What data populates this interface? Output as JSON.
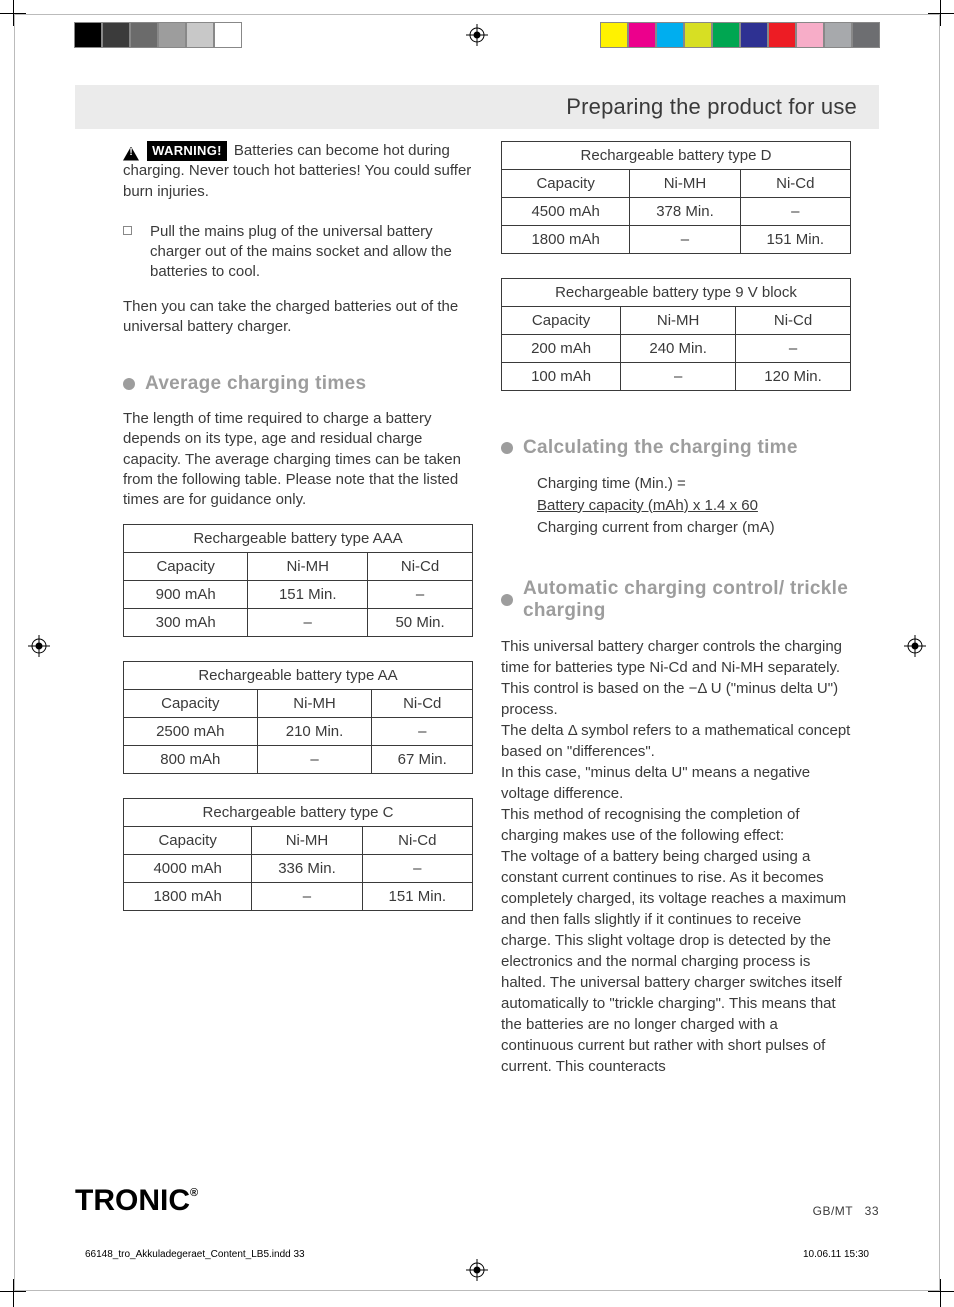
{
  "header": {
    "title": "Preparing the product for use"
  },
  "colorbar_left": [
    "#000000",
    "#3b3b3b",
    "#6b6b6b",
    "#9d9d9d",
    "#c8c8c8",
    "#ffffff"
  ],
  "colorbar_right": [
    "#fff200",
    "#ec008c",
    "#00aeef",
    "#d7df23",
    "#00a651",
    "#2e3192",
    "#ed1c24",
    "#f7adc8",
    "#a7a9ac",
    "#6d6e71"
  ],
  "warning": {
    "label": "WARNING!",
    "text": "Batteries can become hot during charging. Never touch hot batteries! You could suffer burn injuries."
  },
  "bullet1": "Pull the mains plug of the universal battery charger out of the mains socket and allow the batteries to cool.",
  "after_bullet": "Then you can take the charged batteries out of the universal battery charger.",
  "section_avg": {
    "title": "Average charging times",
    "intro": "The length of time required to charge a battery depends on its type, age and residual charge capacity. The average charging times can be taken from the following table. Please note that the listed times are for guidance only."
  },
  "tables": [
    {
      "title": "Rechargeable battery type AAA",
      "columns": [
        "Capacity",
        "Ni-MH",
        "Ni-Cd"
      ],
      "rows": [
        [
          "900 mAh",
          "151 Min.",
          "–"
        ],
        [
          "300 mAh",
          "–",
          "50 Min."
        ]
      ]
    },
    {
      "title": "Rechargeable battery type AA",
      "columns": [
        "Capacity",
        "Ni-MH",
        "Ni-Cd"
      ],
      "rows": [
        [
          "2500 mAh",
          "210 Min.",
          "–"
        ],
        [
          "800 mAh",
          "–",
          "67 Min."
        ]
      ]
    },
    {
      "title": "Rechargeable battery type C",
      "columns": [
        "Capacity",
        "Ni-MH",
        "Ni-Cd"
      ],
      "rows": [
        [
          "4000 mAh",
          "336 Min.",
          "–"
        ],
        [
          "1800 mAh",
          "–",
          "151 Min."
        ]
      ]
    },
    {
      "title": "Rechargeable battery type D",
      "columns": [
        "Capacity",
        "Ni-MH",
        "Ni-Cd"
      ],
      "rows": [
        [
          "4500 mAh",
          "378 Min.",
          "–"
        ],
        [
          "1800 mAh",
          "–",
          "151 Min."
        ]
      ]
    },
    {
      "title": "Rechargeable battery type 9 V block",
      "columns": [
        "Capacity",
        "Ni-MH",
        "Ni-Cd"
      ],
      "rows": [
        [
          "200 mAh",
          "240 Min.",
          "–"
        ],
        [
          "100 mAh",
          "–",
          "120 Min."
        ]
      ]
    }
  ],
  "section_calc": {
    "title": "Calculating the charging time",
    "line1": "Charging time (Min.) =",
    "line2": "Battery capacity (mAh) x 1.4 x 60",
    "line3": "Charging current from charger (mA)"
  },
  "section_auto": {
    "title": "Automatic charging control/ trickle charging",
    "body": "This universal battery charger controls the charging time for batteries type Ni-Cd and Ni-MH separately. This control is based on the −Δ U (\"minus delta U\") process.\nThe delta Δ symbol refers to a mathematical concept based on \"differences\".\nIn this case, \"minus delta U\" means a negative voltage difference.\nThis method of recognising the completion of charging makes use of the following effect:\nThe voltage of a battery being charged using a constant current continues to rise. As it becomes completely charged, its voltage reaches a maximum and then falls slightly if it continues to receive charge. This slight voltage drop is detected by the electronics and the normal charging process is halted. The universal battery charger switches itself automatically to \"trickle charging\". This means that the batteries are no longer charged with a continuous current but rather with short pulses of current. This counteracts"
  },
  "footer": {
    "logo": "TRONIC",
    "pagenum_label": "GB/MT",
    "pagenum": "33"
  },
  "slug": {
    "file": "66148_tro_Akkuladegeraet_Content_LB5.indd   33",
    "date": "10.06.11   15:30"
  }
}
